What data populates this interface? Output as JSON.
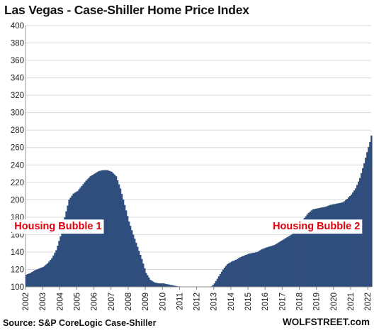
{
  "chart_data": {
    "type": "bar",
    "title": "Las Vegas - Case-Shiller Home Price Index",
    "source": "Source: S&P CoreLogic Case-Shiller",
    "brand": "WOLFSTREET.com",
    "ylim": [
      100,
      400
    ],
    "yticks": [
      100,
      120,
      140,
      160,
      180,
      200,
      220,
      240,
      260,
      280,
      300,
      320,
      340,
      360,
      380,
      400
    ],
    "years": [
      "2002",
      "2003",
      "2004",
      "2005",
      "2006",
      "2007",
      "2008",
      "2009",
      "2010",
      "2011",
      "2012",
      "2013",
      "2014",
      "2015",
      "2016",
      "2017",
      "2018",
      "2019",
      "2020",
      "2021",
      "2022"
    ],
    "grid": true,
    "bar_color": "#2f4e7e",
    "annotation_color": "#e0000f",
    "annotations": [
      {
        "text": "Housing Bubble 1",
        "year": 2003.9
      },
      {
        "text": "Housing Bubble 2",
        "year": 2019.0
      }
    ],
    "anchors": [
      [
        2002.0,
        114
      ],
      [
        2002.25,
        116
      ],
      [
        2002.5,
        119
      ],
      [
        2002.75,
        121
      ],
      [
        2003.0,
        123
      ],
      [
        2003.25,
        127
      ],
      [
        2003.5,
        133
      ],
      [
        2003.75,
        142
      ],
      [
        2004.0,
        158
      ],
      [
        2004.25,
        180
      ],
      [
        2004.5,
        200
      ],
      [
        2004.75,
        207
      ],
      [
        2005.0,
        210
      ],
      [
        2005.25,
        216
      ],
      [
        2005.5,
        222
      ],
      [
        2005.75,
        227
      ],
      [
        2006.0,
        230
      ],
      [
        2006.25,
        233
      ],
      [
        2006.5,
        234
      ],
      [
        2006.75,
        234
      ],
      [
        2007.0,
        232
      ],
      [
        2007.25,
        227
      ],
      [
        2007.5,
        213
      ],
      [
        2007.75,
        194
      ],
      [
        2008.0,
        175
      ],
      [
        2008.25,
        160
      ],
      [
        2008.5,
        146
      ],
      [
        2008.75,
        132
      ],
      [
        2009.0,
        116
      ],
      [
        2009.25,
        108
      ],
      [
        2009.5,
        105
      ],
      [
        2009.75,
        104
      ],
      [
        2010.0,
        104
      ],
      [
        2010.25,
        103
      ],
      [
        2010.5,
        102
      ],
      [
        2010.75,
        101
      ],
      [
        2011.0,
        100
      ],
      [
        2011.5,
        99
      ],
      [
        2012.0,
        97
      ],
      [
        2012.5,
        97
      ],
      [
        2012.75,
        99
      ],
      [
        2013.0,
        104
      ],
      [
        2013.25,
        112
      ],
      [
        2013.5,
        120
      ],
      [
        2013.75,
        126
      ],
      [
        2014.0,
        129
      ],
      [
        2014.25,
        131
      ],
      [
        2014.5,
        134
      ],
      [
        2014.75,
        136
      ],
      [
        2015.0,
        138
      ],
      [
        2015.5,
        140
      ],
      [
        2015.75,
        143
      ],
      [
        2016.0,
        145
      ],
      [
        2016.5,
        148
      ],
      [
        2016.75,
        151
      ],
      [
        2017.0,
        154
      ],
      [
        2017.5,
        160
      ],
      [
        2017.75,
        164
      ],
      [
        2018.0,
        170
      ],
      [
        2018.25,
        179
      ],
      [
        2018.5,
        185
      ],
      [
        2018.75,
        189
      ],
      [
        2019.0,
        190
      ],
      [
        2019.5,
        192
      ],
      [
        2019.75,
        194
      ],
      [
        2020.0,
        195
      ],
      [
        2020.5,
        197
      ],
      [
        2020.75,
        201
      ],
      [
        2021.0,
        206
      ],
      [
        2021.25,
        213
      ],
      [
        2021.5,
        225
      ],
      [
        2021.75,
        242
      ],
      [
        2021.92,
        255
      ],
      [
        2022.08,
        266
      ],
      [
        2022.17,
        274
      ]
    ]
  }
}
